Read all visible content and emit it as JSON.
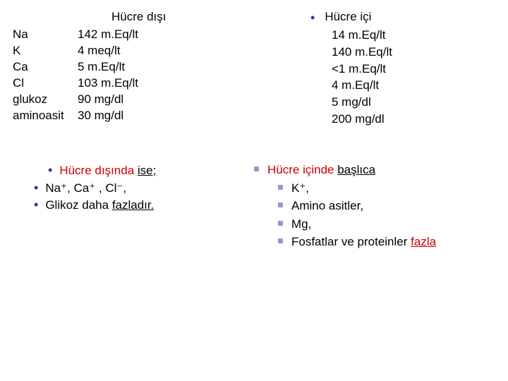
{
  "left": {
    "title": "Hücre dışı",
    "rows": [
      {
        "label": "Na",
        "value": "142 m.Eq/lt"
      },
      {
        "label": "K",
        "value": "4 meq/lt"
      },
      {
        "label": "Ca",
        "value": "5 m.Eq/lt"
      },
      {
        "label": "Cl",
        "value": "103 m.Eq/lt"
      },
      {
        "label": "glukoz",
        "value": "90 mg/dl"
      },
      {
        "label": "aminoasit",
        "value": "30 mg/dl"
      }
    ],
    "notes": {
      "line1_a": "Hücre dışında ",
      "line1_b": "ise;",
      "line2": "Na⁺, Ca⁺ , Cl⁻,",
      "line3_a": "Glikoz daha ",
      "line3_b": "fazladır."
    }
  },
  "right": {
    "title": "Hücre içi",
    "values": [
      "14 m.Eq/lt",
      "140 m.Eq/lt",
      "<1 m.Eq/lt",
      "4 m.Eq/lt",
      "5 mg/dl",
      "200 mg/dl"
    ],
    "notes": {
      "head_a": "Hücre içinde ",
      "head_b": "başlıca",
      "l1": "K⁺,",
      "l2": "Amino asitler,",
      "l3": "Mg,",
      "l4_a": "Fosfatlar ve proteinler ",
      "l4_b": "fazla"
    }
  }
}
